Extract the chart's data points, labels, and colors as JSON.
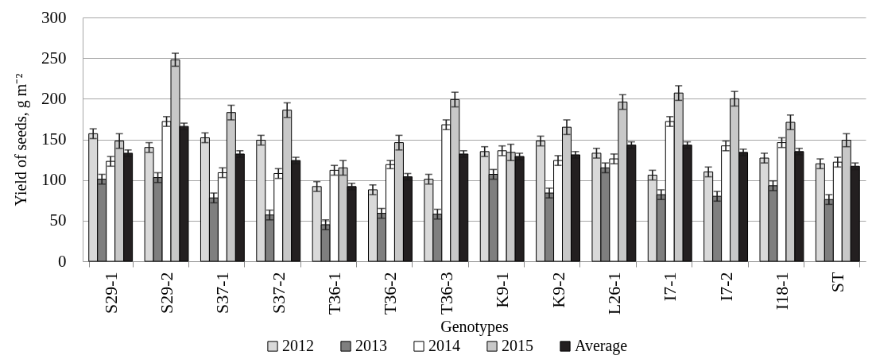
{
  "chart_data": {
    "type": "bar",
    "xlabel": "Genotypes",
    "ylabel": "Yield of seeds, g m⁻²",
    "categories": [
      "S29-1",
      "S29-2",
      "S37-1",
      "S37-2",
      "T36-1",
      "T36-2",
      "T36-3",
      "K9-1",
      "K9-2",
      "L26-1",
      "I7-1",
      "I7-2",
      "I18-1",
      "ST"
    ],
    "series": [
      {
        "name": "2012",
        "color": "#d9d9d9",
        "values": [
          157,
          140,
          152,
          149,
          92,
          88,
          101,
          135,
          148,
          133,
          106,
          110,
          127,
          120
        ],
        "errors": [
          6,
          6,
          6,
          6,
          6,
          6,
          6,
          6,
          6,
          6,
          6,
          6,
          6,
          6
        ]
      },
      {
        "name": "2013",
        "color": "#7f7f7f",
        "values": [
          101,
          103,
          78,
          57,
          45,
          59,
          58,
          107,
          84,
          115,
          82,
          80,
          93,
          76
        ],
        "errors": [
          6,
          6,
          6,
          6,
          6,
          6,
          6,
          6,
          6,
          6,
          6,
          6,
          6,
          6
        ]
      },
      {
        "name": "2014",
        "color": "#ffffff",
        "values": [
          123,
          172,
          109,
          108,
          112,
          119,
          168,
          136,
          124,
          126,
          172,
          142,
          146,
          122
        ],
        "errors": [
          6,
          6,
          6,
          6,
          6,
          5,
          6,
          6,
          6,
          6,
          6,
          6,
          6,
          6
        ]
      },
      {
        "name": "2015",
        "color": "#c8c8c8",
        "values": [
          148,
          248,
          183,
          186,
          115,
          146,
          199,
          134,
          165,
          196,
          207,
          200,
          171,
          149
        ],
        "errors": [
          9,
          8,
          9,
          9,
          9,
          9,
          9,
          10,
          9,
          9,
          9,
          9,
          9,
          8
        ]
      },
      {
        "name": "Average",
        "color": "#231f20",
        "values": [
          133,
          166,
          132,
          124,
          92,
          104,
          132,
          129,
          131,
          143,
          143,
          134,
          135,
          117
        ],
        "errors": [
          4,
          4,
          4,
          4,
          4,
          4,
          4,
          4,
          4,
          4,
          4,
          4,
          4,
          4
        ]
      }
    ],
    "ylim": [
      0,
      300
    ],
    "yticks": [
      0,
      50,
      100,
      150,
      200,
      250,
      300
    ],
    "grid": "y",
    "legend": "bottom"
  }
}
